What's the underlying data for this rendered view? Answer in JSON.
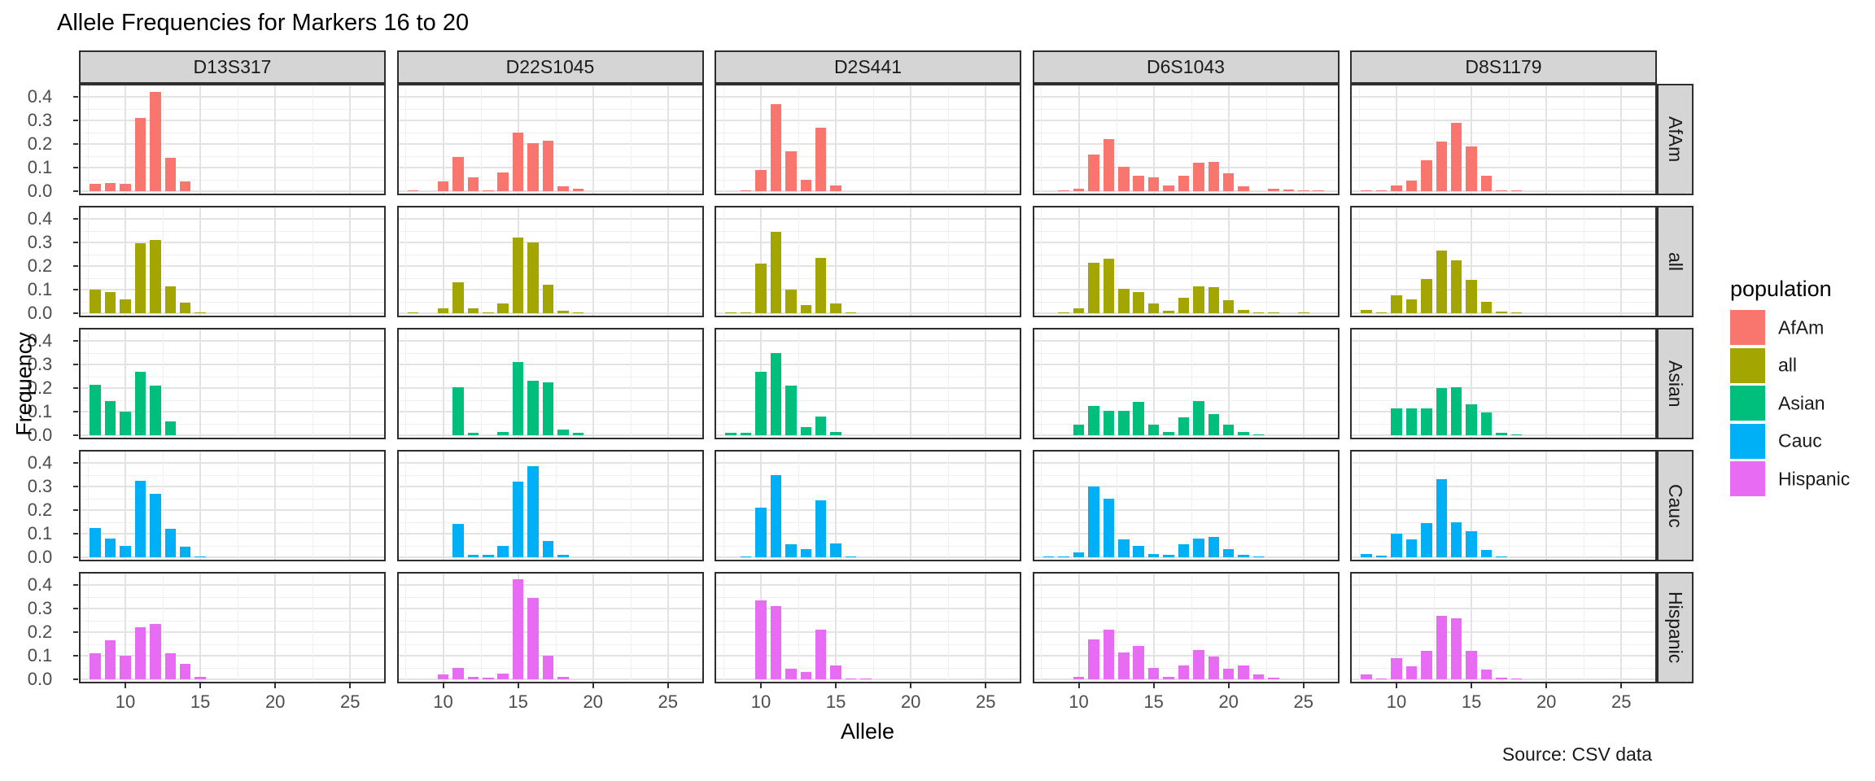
{
  "title": "Allele Frequencies for Markers 16 to 20",
  "caption": "Source: CSV data",
  "chart_data": {
    "type": "bar",
    "title": "Allele Frequencies for Markers 16 to 20",
    "xlabel": "Allele",
    "ylabel": "Frequency",
    "caption": "Source: CSV data",
    "legend_title": "population",
    "legend_position": "right",
    "grid": true,
    "facet_columns": [
      "D13S317",
      "D22S1045",
      "D2S441",
      "D6S1043",
      "D8S1179"
    ],
    "facet_rows": [
      "AfAm",
      "all",
      "Asian",
      "Cauc",
      "Hispanic"
    ],
    "colors": {
      "AfAm": "#F8766D",
      "all": "#A3A500",
      "Asian": "#00BF7D",
      "Cauc": "#00B0F6",
      "Hispanic": "#E76BF3"
    },
    "x_ticks": [
      10,
      15,
      20,
      25
    ],
    "x_minor_ticks": [
      7.5,
      12.5,
      17.5,
      22.5
    ],
    "y_ticks": [
      0.0,
      0.1,
      0.2,
      0.3,
      0.4
    ],
    "y_minor_ticks": [
      0.05,
      0.15,
      0.25,
      0.35,
      0.45
    ],
    "x_domain": [
      6.9,
      27.4
    ],
    "y_domain": [
      0,
      0.455
    ],
    "series": [
      {
        "marker": "D13S317",
        "population": "AfAm",
        "bars": [
          [
            8,
            0.03
          ],
          [
            9,
            0.035
          ],
          [
            10,
            0.03
          ],
          [
            11,
            0.31
          ],
          [
            12,
            0.42
          ],
          [
            13,
            0.14
          ],
          [
            14,
            0.04
          ]
        ]
      },
      {
        "marker": "D13S317",
        "population": "all",
        "bars": [
          [
            8,
            0.1
          ],
          [
            9,
            0.09
          ],
          [
            10,
            0.06
          ],
          [
            11,
            0.295
          ],
          [
            12,
            0.31
          ],
          [
            13,
            0.115
          ],
          [
            14,
            0.045
          ],
          [
            15,
            0.005
          ]
        ]
      },
      {
        "marker": "D13S317",
        "population": "Asian",
        "bars": [
          [
            8,
            0.215
          ],
          [
            9,
            0.145
          ],
          [
            10,
            0.1
          ],
          [
            11,
            0.27
          ],
          [
            12,
            0.21
          ],
          [
            13,
            0.06
          ]
        ]
      },
      {
        "marker": "D13S317",
        "population": "Cauc",
        "bars": [
          [
            8,
            0.125
          ],
          [
            9,
            0.08
          ],
          [
            10,
            0.05
          ],
          [
            11,
            0.325
          ],
          [
            12,
            0.27
          ],
          [
            13,
            0.12
          ],
          [
            14,
            0.045
          ],
          [
            15,
            0.005
          ]
        ]
      },
      {
        "marker": "D13S317",
        "population": "Hispanic",
        "bars": [
          [
            8,
            0.11
          ],
          [
            9,
            0.165
          ],
          [
            10,
            0.1
          ],
          [
            11,
            0.22
          ],
          [
            12,
            0.235
          ],
          [
            13,
            0.11
          ],
          [
            14,
            0.065
          ],
          [
            15,
            0.01
          ]
        ]
      },
      {
        "marker": "D22S1045",
        "population": "AfAm",
        "bars": [
          [
            8,
            0.005
          ],
          [
            10,
            0.04
          ],
          [
            11,
            0.145
          ],
          [
            12,
            0.06
          ],
          [
            13,
            0.005
          ],
          [
            14,
            0.08
          ],
          [
            15,
            0.25
          ],
          [
            16,
            0.205
          ],
          [
            17,
            0.215
          ],
          [
            18,
            0.02
          ],
          [
            19,
            0.01
          ]
        ]
      },
      {
        "marker": "D22S1045",
        "population": "all",
        "bars": [
          [
            8,
            0.004
          ],
          [
            10,
            0.02
          ],
          [
            11,
            0.13
          ],
          [
            12,
            0.02
          ],
          [
            13,
            0.004
          ],
          [
            14,
            0.04
          ],
          [
            15,
            0.32
          ],
          [
            16,
            0.3
          ],
          [
            17,
            0.12
          ],
          [
            18,
            0.012
          ],
          [
            19,
            0.005
          ]
        ]
      },
      {
        "marker": "D22S1045",
        "population": "Asian",
        "bars": [
          [
            11,
            0.205
          ],
          [
            12,
            0.01
          ],
          [
            14,
            0.015
          ],
          [
            15,
            0.31
          ],
          [
            16,
            0.23
          ],
          [
            17,
            0.225
          ],
          [
            18,
            0.025
          ],
          [
            19,
            0.012
          ]
        ]
      },
      {
        "marker": "D22S1045",
        "population": "Cauc",
        "bars": [
          [
            11,
            0.14
          ],
          [
            12,
            0.012
          ],
          [
            13,
            0.01
          ],
          [
            14,
            0.05
          ],
          [
            15,
            0.32
          ],
          [
            16,
            0.385
          ],
          [
            17,
            0.07
          ],
          [
            18,
            0.01
          ]
        ]
      },
      {
        "marker": "D22S1045",
        "population": "Hispanic",
        "bars": [
          [
            10,
            0.02
          ],
          [
            11,
            0.05
          ],
          [
            12,
            0.01
          ],
          [
            13,
            0.008
          ],
          [
            14,
            0.025
          ],
          [
            15,
            0.425
          ],
          [
            16,
            0.345
          ],
          [
            17,
            0.1
          ],
          [
            18,
            0.01
          ]
        ]
      },
      {
        "marker": "D2S441",
        "population": "AfAm",
        "bars": [
          [
            9,
            0.004
          ],
          [
            10,
            0.09
          ],
          [
            11,
            0.37
          ],
          [
            12,
            0.17
          ],
          [
            13,
            0.05
          ],
          [
            14,
            0.27
          ],
          [
            15,
            0.025
          ]
        ]
      },
      {
        "marker": "D2S441",
        "population": "all",
        "bars": [
          [
            8,
            0.003
          ],
          [
            9,
            0.005
          ],
          [
            10,
            0.21
          ],
          [
            11,
            0.345
          ],
          [
            12,
            0.1
          ],
          [
            13,
            0.035
          ],
          [
            14,
            0.235
          ],
          [
            15,
            0.04
          ],
          [
            16,
            0.005
          ]
        ]
      },
      {
        "marker": "D2S441",
        "population": "Asian",
        "bars": [
          [
            8,
            0.01
          ],
          [
            9,
            0.01
          ],
          [
            10,
            0.27
          ],
          [
            11,
            0.35
          ],
          [
            12,
            0.21
          ],
          [
            13,
            0.035
          ],
          [
            14,
            0.08
          ],
          [
            15,
            0.015
          ]
        ]
      },
      {
        "marker": "D2S441",
        "population": "Cauc",
        "bars": [
          [
            9,
            0.005
          ],
          [
            10,
            0.21
          ],
          [
            11,
            0.35
          ],
          [
            12,
            0.055
          ],
          [
            13,
            0.035
          ],
          [
            14,
            0.24
          ],
          [
            15,
            0.06
          ],
          [
            16,
            0.005
          ]
        ]
      },
      {
        "marker": "D2S441",
        "population": "Hispanic",
        "bars": [
          [
            10,
            0.335
          ],
          [
            11,
            0.31
          ],
          [
            12,
            0.045
          ],
          [
            13,
            0.03
          ],
          [
            14,
            0.21
          ],
          [
            15,
            0.06
          ],
          [
            16,
            0.005
          ],
          [
            17,
            0.005
          ]
        ]
      },
      {
        "marker": "D6S1043",
        "population": "AfAm",
        "bars": [
          [
            9,
            0.004
          ],
          [
            10,
            0.012
          ],
          [
            11,
            0.155
          ],
          [
            12,
            0.22
          ],
          [
            13,
            0.105
          ],
          [
            14,
            0.065
          ],
          [
            15,
            0.06
          ],
          [
            16,
            0.025
          ],
          [
            17,
            0.065
          ],
          [
            18,
            0.12
          ],
          [
            19,
            0.125
          ],
          [
            20,
            0.075
          ],
          [
            21,
            0.02
          ],
          [
            23,
            0.01
          ],
          [
            24,
            0.007
          ],
          [
            25,
            0.004
          ],
          [
            26,
            0.004
          ]
        ]
      },
      {
        "marker": "D6S1043",
        "population": "all",
        "bars": [
          [
            9,
            0.002
          ],
          [
            10,
            0.02
          ],
          [
            11,
            0.215
          ],
          [
            12,
            0.23
          ],
          [
            13,
            0.105
          ],
          [
            14,
            0.09
          ],
          [
            15,
            0.04
          ],
          [
            16,
            0.01
          ],
          [
            17,
            0.065
          ],
          [
            18,
            0.115
          ],
          [
            19,
            0.11
          ],
          [
            20,
            0.055
          ],
          [
            21,
            0.015
          ],
          [
            22,
            0.005
          ],
          [
            23,
            0.004
          ],
          [
            25,
            0.002
          ]
        ]
      },
      {
        "marker": "D6S1043",
        "population": "Asian",
        "bars": [
          [
            10,
            0.045
          ],
          [
            11,
            0.125
          ],
          [
            12,
            0.105
          ],
          [
            13,
            0.105
          ],
          [
            14,
            0.14
          ],
          [
            15,
            0.045
          ],
          [
            16,
            0.015
          ],
          [
            17,
            0.075
          ],
          [
            18,
            0.145
          ],
          [
            19,
            0.09
          ],
          [
            20,
            0.045
          ],
          [
            21,
            0.015
          ],
          [
            22,
            0.005
          ]
        ]
      },
      {
        "marker": "D6S1043",
        "population": "Cauc",
        "bars": [
          [
            8,
            0.003
          ],
          [
            9,
            0.005
          ],
          [
            10,
            0.02
          ],
          [
            11,
            0.3
          ],
          [
            12,
            0.25
          ],
          [
            13,
            0.075
          ],
          [
            14,
            0.05
          ],
          [
            15,
            0.015
          ],
          [
            16,
            0.01
          ],
          [
            17,
            0.055
          ],
          [
            18,
            0.08
          ],
          [
            19,
            0.085
          ],
          [
            20,
            0.035
          ],
          [
            21,
            0.012
          ],
          [
            22,
            0.004
          ]
        ]
      },
      {
        "marker": "D6S1043",
        "population": "Hispanic",
        "bars": [
          [
            10,
            0.01
          ],
          [
            11,
            0.17
          ],
          [
            12,
            0.21
          ],
          [
            13,
            0.115
          ],
          [
            14,
            0.14
          ],
          [
            15,
            0.05
          ],
          [
            16,
            0.01
          ],
          [
            17,
            0.06
          ],
          [
            18,
            0.125
          ],
          [
            19,
            0.095
          ],
          [
            20,
            0.045
          ],
          [
            21,
            0.06
          ],
          [
            22,
            0.02
          ],
          [
            23,
            0.008
          ]
        ]
      },
      {
        "marker": "D8S1179",
        "population": "AfAm",
        "bars": [
          [
            8,
            0.005
          ],
          [
            9,
            0.005
          ],
          [
            10,
            0.025
          ],
          [
            11,
            0.045
          ],
          [
            12,
            0.13
          ],
          [
            13,
            0.21
          ],
          [
            14,
            0.29
          ],
          [
            15,
            0.19
          ],
          [
            16,
            0.065
          ],
          [
            17,
            0.005
          ],
          [
            18,
            0.005
          ]
        ]
      },
      {
        "marker": "D8S1179",
        "population": "all",
        "bars": [
          [
            8,
            0.015
          ],
          [
            9,
            0.005
          ],
          [
            10,
            0.075
          ],
          [
            11,
            0.06
          ],
          [
            12,
            0.145
          ],
          [
            13,
            0.265
          ],
          [
            14,
            0.225
          ],
          [
            15,
            0.14
          ],
          [
            16,
            0.05
          ],
          [
            17,
            0.006
          ],
          [
            18,
            0.003
          ]
        ]
      },
      {
        "marker": "D8S1179",
        "population": "Asian",
        "bars": [
          [
            10,
            0.115
          ],
          [
            11,
            0.115
          ],
          [
            12,
            0.115
          ],
          [
            13,
            0.2
          ],
          [
            14,
            0.205
          ],
          [
            15,
            0.13
          ],
          [
            16,
            0.095
          ],
          [
            17,
            0.01
          ],
          [
            18,
            0.005
          ]
        ]
      },
      {
        "marker": "D8S1179",
        "population": "Cauc",
        "bars": [
          [
            8,
            0.015
          ],
          [
            9,
            0.008
          ],
          [
            10,
            0.1
          ],
          [
            11,
            0.075
          ],
          [
            12,
            0.145
          ],
          [
            13,
            0.33
          ],
          [
            14,
            0.15
          ],
          [
            15,
            0.11
          ],
          [
            16,
            0.03
          ],
          [
            17,
            0.004
          ]
        ]
      },
      {
        "marker": "D8S1179",
        "population": "Hispanic",
        "bars": [
          [
            8,
            0.02
          ],
          [
            9,
            0.005
          ],
          [
            10,
            0.09
          ],
          [
            11,
            0.055
          ],
          [
            12,
            0.12
          ],
          [
            13,
            0.27
          ],
          [
            14,
            0.26
          ],
          [
            15,
            0.12
          ],
          [
            16,
            0.04
          ],
          [
            17,
            0.006
          ],
          [
            18,
            0.003
          ]
        ]
      }
    ]
  }
}
